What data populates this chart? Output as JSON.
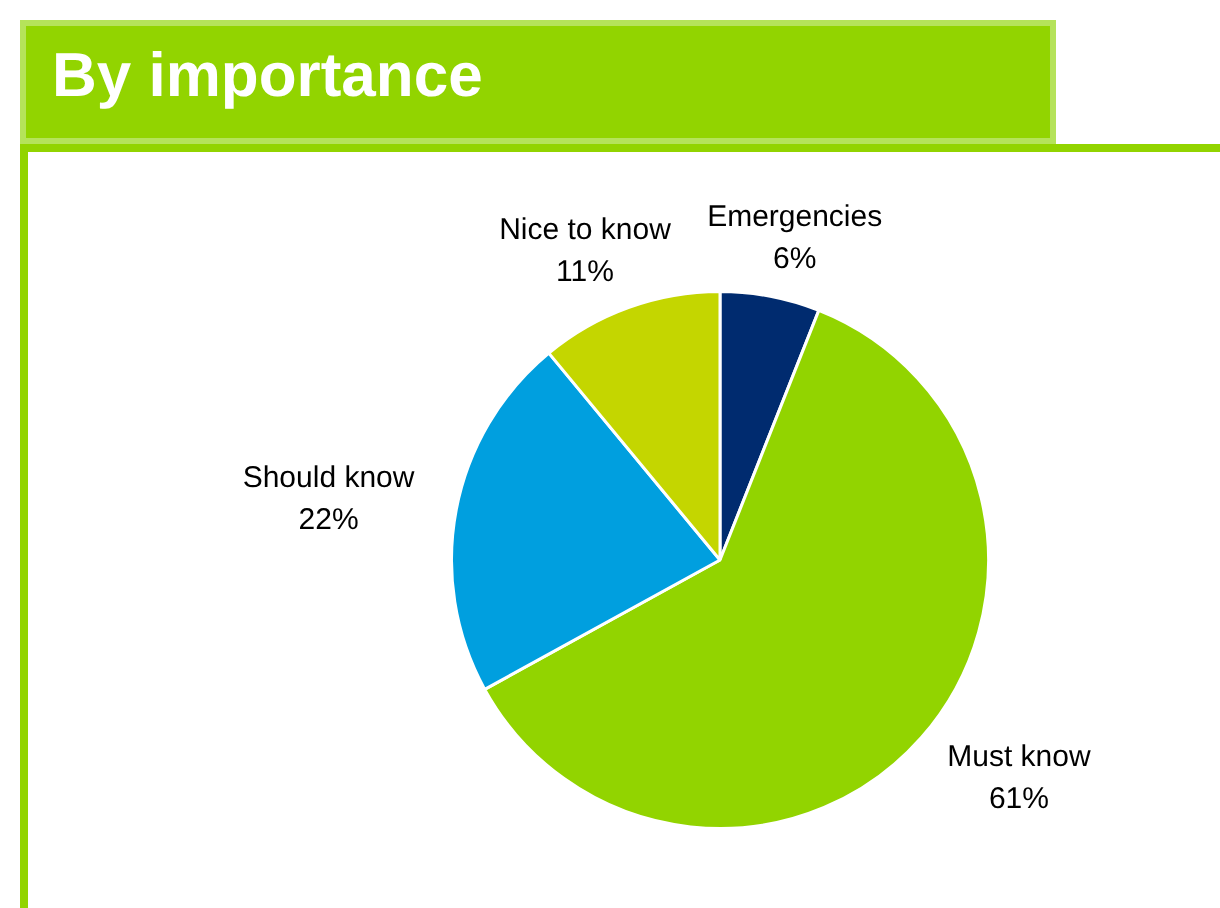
{
  "chart_data": {
    "type": "pie",
    "title": "By importance",
    "categories": [
      "Emergencies",
      "Must know",
      "Should know",
      "Nice to know"
    ],
    "values": [
      6,
      61,
      22,
      11
    ],
    "value_labels": [
      "6%",
      "61%",
      "22%",
      "11%"
    ],
    "colors": [
      "#002b6f",
      "#92d400",
      "#009fdf",
      "#c4d600"
    ],
    "legend": false
  }
}
